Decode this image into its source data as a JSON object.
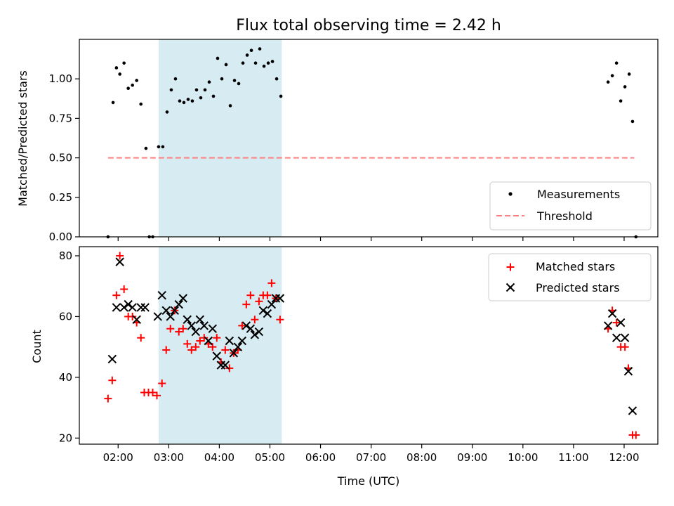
{
  "chart_data": [
    {
      "type": "scatter",
      "title": "Flux total observing time = 2.42 h",
      "xlabel": "",
      "ylabel": "Matched/Predicted stars",
      "ylim": [
        0,
        1.25
      ],
      "yticks": [
        "0.00",
        "0.25",
        "0.50",
        "0.75",
        "1.00"
      ],
      "shaded_span": [
        "02:48",
        "05:14"
      ],
      "legend": {
        "position": "lower-right",
        "entries": [
          "Measurements",
          "Threshold"
        ]
      },
      "threshold": {
        "name": "Threshold",
        "value": 0.5,
        "x": [
          "01:48",
          "12:12"
        ],
        "color": "#ff8080"
      },
      "series": [
        {
          "name": "Measurements",
          "color": "#000000",
          "points": [
            [
              "01:48",
              0.0
            ],
            [
              "01:54",
              0.85
            ],
            [
              "01:58",
              1.07
            ],
            [
              "02:02",
              1.03
            ],
            [
              "02:07",
              1.1
            ],
            [
              "02:12",
              0.94
            ],
            [
              "02:17",
              0.96
            ],
            [
              "02:22",
              0.99
            ],
            [
              "02:27",
              0.84
            ],
            [
              "02:33",
              0.56
            ],
            [
              "02:37",
              0.0
            ],
            [
              "02:41",
              0.0
            ],
            [
              "02:48",
              0.57
            ],
            [
              "02:53",
              0.57
            ],
            [
              "02:58",
              0.79
            ],
            [
              "03:03",
              0.93
            ],
            [
              "03:08",
              1.0
            ],
            [
              "03:13",
              0.86
            ],
            [
              "03:18",
              0.85
            ],
            [
              "03:23",
              0.87
            ],
            [
              "03:28",
              0.86
            ],
            [
              "03:33",
              0.93
            ],
            [
              "03:38",
              0.88
            ],
            [
              "03:43",
              0.93
            ],
            [
              "03:48",
              0.98
            ],
            [
              "03:53",
              0.89
            ],
            [
              "03:58",
              1.13
            ],
            [
              "04:03",
              1.0
            ],
            [
              "04:08",
              1.09
            ],
            [
              "04:13",
              0.83
            ],
            [
              "04:18",
              0.99
            ],
            [
              "04:23",
              0.97
            ],
            [
              "04:28",
              1.1
            ],
            [
              "04:33",
              1.15
            ],
            [
              "04:38",
              1.18
            ],
            [
              "04:43",
              1.1
            ],
            [
              "04:48",
              1.19
            ],
            [
              "04:53",
              1.08
            ],
            [
              "04:58",
              1.1
            ],
            [
              "05:03",
              1.11
            ],
            [
              "05:08",
              1.0
            ],
            [
              "05:13",
              0.89
            ],
            [
              "11:41",
              0.98
            ],
            [
              "11:46",
              1.02
            ],
            [
              "11:51",
              1.1
            ],
            [
              "11:56",
              0.86
            ],
            [
              "12:01",
              0.95
            ],
            [
              "12:06",
              1.03
            ],
            [
              "12:10",
              0.73
            ],
            [
              "12:14",
              0.0
            ]
          ]
        }
      ]
    },
    {
      "type": "scatter",
      "title": "",
      "xlabel": "Time (UTC)",
      "ylabel": "Count",
      "ylim": [
        18,
        83
      ],
      "yticks": [
        "20",
        "40",
        "60",
        "80"
      ],
      "xlim": [
        "01:14",
        "12:40"
      ],
      "xticks": [
        "02:00",
        "03:00",
        "04:00",
        "05:00",
        "06:00",
        "07:00",
        "08:00",
        "09:00",
        "10:00",
        "11:00",
        "12:00"
      ],
      "shaded_span": [
        "02:48",
        "05:14"
      ],
      "legend": {
        "position": "top-right",
        "entries": [
          "Matched stars",
          "Predicted stars"
        ]
      },
      "series": [
        {
          "name": "Matched stars",
          "marker": "+",
          "color": "#ff0000",
          "points": [
            [
              "01:48",
              33
            ],
            [
              "01:53",
              39
            ],
            [
              "01:58",
              67
            ],
            [
              "02:02",
              80
            ],
            [
              "02:07",
              69
            ],
            [
              "02:12",
              60
            ],
            [
              "02:17",
              60
            ],
            [
              "02:22",
              58
            ],
            [
              "02:27",
              53
            ],
            [
              "02:31",
              35
            ],
            [
              "02:36",
              35
            ],
            [
              "02:41",
              35
            ],
            [
              "02:46",
              34
            ],
            [
              "02:52",
              38
            ],
            [
              "02:57",
              49
            ],
            [
              "03:02",
              56
            ],
            [
              "03:07",
              62
            ],
            [
              "03:12",
              55
            ],
            [
              "03:17",
              56
            ],
            [
              "03:22",
              51
            ],
            [
              "03:27",
              49
            ],
            [
              "03:32",
              50
            ],
            [
              "03:37",
              52
            ],
            [
              "03:42",
              53
            ],
            [
              "03:47",
              51
            ],
            [
              "03:52",
              50
            ],
            [
              "03:57",
              53
            ],
            [
              "04:02",
              45
            ],
            [
              "04:07",
              49
            ],
            [
              "04:12",
              43
            ],
            [
              "04:17",
              48
            ],
            [
              "04:22",
              49
            ],
            [
              "04:27",
              57
            ],
            [
              "04:32",
              64
            ],
            [
              "04:37",
              67
            ],
            [
              "04:42",
              59
            ],
            [
              "04:47",
              65
            ],
            [
              "04:52",
              67
            ],
            [
              "04:57",
              67
            ],
            [
              "05:02",
              71
            ],
            [
              "05:07",
              66
            ],
            [
              "05:12",
              59
            ],
            [
              "11:41",
              56
            ],
            [
              "11:46",
              62
            ],
            [
              "11:51",
              58
            ],
            [
              "11:56",
              50
            ],
            [
              "12:01",
              50
            ],
            [
              "12:05",
              43
            ],
            [
              "12:10",
              21
            ],
            [
              "12:14",
              21
            ]
          ]
        },
        {
          "name": "Predicted stars",
          "marker": "x",
          "color": "#000000",
          "points": [
            [
              "01:53",
              46
            ],
            [
              "01:58",
              63
            ],
            [
              "02:02",
              78
            ],
            [
              "02:07",
              63
            ],
            [
              "02:12",
              64
            ],
            [
              "02:17",
              63
            ],
            [
              "02:22",
              59
            ],
            [
              "02:27",
              63
            ],
            [
              "02:32",
              63
            ],
            [
              "02:47",
              60
            ],
            [
              "02:52",
              67
            ],
            [
              "02:57",
              62
            ],
            [
              "03:02",
              60
            ],
            [
              "03:07",
              62
            ],
            [
              "03:12",
              64
            ],
            [
              "03:17",
              66
            ],
            [
              "03:22",
              59
            ],
            [
              "03:27",
              57
            ],
            [
              "03:32",
              55
            ],
            [
              "03:37",
              59
            ],
            [
              "03:42",
              57
            ],
            [
              "03:47",
              52
            ],
            [
              "03:52",
              56
            ],
            [
              "03:57",
              47
            ],
            [
              "04:02",
              44
            ],
            [
              "04:07",
              44
            ],
            [
              "04:12",
              52
            ],
            [
              "04:17",
              48
            ],
            [
              "04:22",
              50
            ],
            [
              "04:27",
              52
            ],
            [
              "04:32",
              57
            ],
            [
              "04:37",
              56
            ],
            [
              "04:42",
              54
            ],
            [
              "04:47",
              55
            ],
            [
              "04:52",
              62
            ],
            [
              "04:57",
              61
            ],
            [
              "05:02",
              64
            ],
            [
              "05:07",
              66
            ],
            [
              "05:12",
              66
            ],
            [
              "11:41",
              57
            ],
            [
              "11:46",
              61
            ],
            [
              "11:51",
              53
            ],
            [
              "11:56",
              58
            ],
            [
              "12:01",
              53
            ],
            [
              "12:05",
              42
            ],
            [
              "12:10",
              29
            ]
          ]
        }
      ]
    }
  ]
}
